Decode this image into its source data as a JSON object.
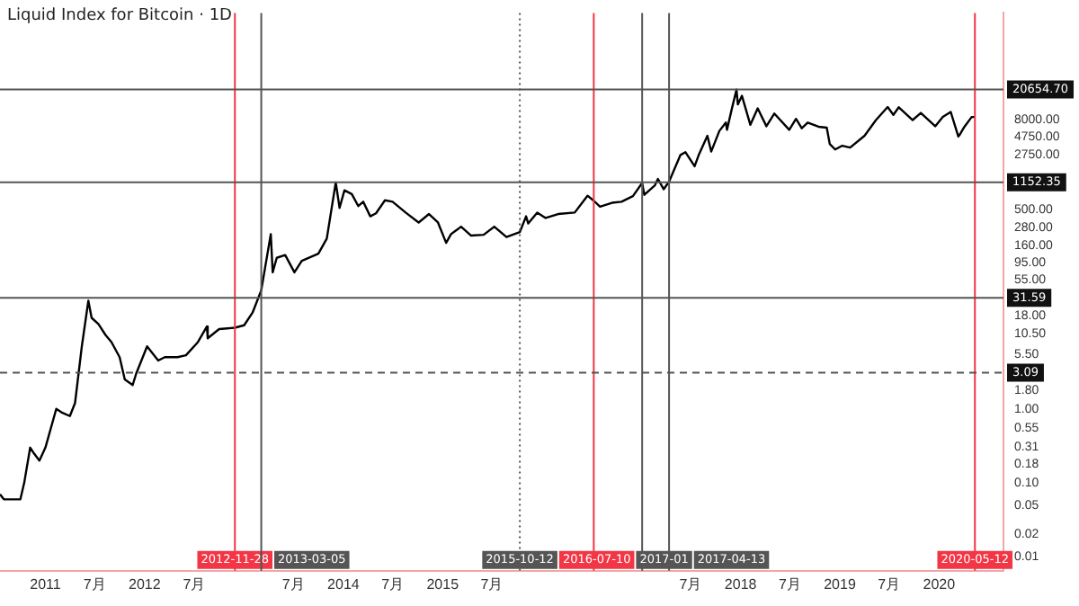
{
  "chart_data": {
    "type": "line",
    "title": "Liquid Index for Bitcoin · 1D",
    "log": "y",
    "legend": false,
    "grid": false,
    "marker": "none",
    "line_style": "solid",
    "xlim": [
      "2010-07-18",
      "2020-08-25"
    ],
    "xticks": [
      {
        "value": "2011-01-01",
        "label": "2011"
      },
      {
        "value": "2011-07-01",
        "label": "7月"
      },
      {
        "value": "2012-01-01",
        "label": "2012"
      },
      {
        "value": "2012-07-01",
        "label": "7月"
      },
      {
        "value": "2013-07-01",
        "label": "7月"
      },
      {
        "value": "2014-01-01",
        "label": "2014"
      },
      {
        "value": "2014-07-01",
        "label": "7月"
      },
      {
        "value": "2015-01-01",
        "label": "2015"
      },
      {
        "value": "2015-07-01",
        "label": "7月"
      },
      {
        "value": "2017-07-01",
        "label": "7月"
      },
      {
        "value": "2018-01-01",
        "label": "2018"
      },
      {
        "value": "2018-07-01",
        "label": "7月"
      },
      {
        "value": "2019-01-01",
        "label": "2019"
      },
      {
        "value": "2019-07-01",
        "label": "7月"
      },
      {
        "value": "2020-01-01",
        "label": "2020"
      }
    ],
    "ylim": [
      0.0065,
      224000
    ],
    "yticks": [
      {
        "value": 0.01,
        "label": "0.01"
      },
      {
        "value": 0.02,
        "label": "0.02"
      },
      {
        "value": 0.05,
        "label": "0.05"
      },
      {
        "value": 0.1,
        "label": "0.10"
      },
      {
        "value": 0.18,
        "label": "0.18"
      },
      {
        "value": 0.31,
        "label": "0.31"
      },
      {
        "value": 0.55,
        "label": "0.55"
      },
      {
        "value": 1,
        "label": "1.00"
      },
      {
        "value": 1.8,
        "label": "1.80"
      },
      {
        "value": 5.5,
        "label": "5.50"
      },
      {
        "value": 10.5,
        "label": "10.50"
      },
      {
        "value": 18,
        "label": "18.00"
      },
      {
        "value": 55,
        "label": "55.00"
      },
      {
        "value": 95,
        "label": "95.00"
      },
      {
        "value": 160,
        "label": "160.00"
      },
      {
        "value": 280,
        "label": "280.00"
      },
      {
        "value": 500,
        "label": "500.00"
      },
      {
        "value": 2750,
        "label": "2750.00"
      },
      {
        "value": 4750,
        "label": "4750.00"
      },
      {
        "value": 8000,
        "label": "8000.00"
      }
    ],
    "ref_lines": [
      {
        "axis": "x",
        "value": "2012-11-28",
        "label": "2012-11-28",
        "color": "#f23645",
        "line_style": "solid"
      },
      {
        "axis": "x",
        "value": "2013-03-05",
        "label": "2013-03-05",
        "color": "#555555",
        "line_style": "solid"
      },
      {
        "axis": "x",
        "value": "2015-10-12",
        "label": "2015-10-12",
        "color": "#555555",
        "line_style": "dotted"
      },
      {
        "axis": "x",
        "value": "2016-07-10",
        "label": "2016-07-10",
        "color": "#f23645",
        "line_style": "solid"
      },
      {
        "axis": "x",
        "value": "2017-01-04",
        "label": "2017-01",
        "color": "#555555",
        "line_style": "solid"
      },
      {
        "axis": "x",
        "value": "2017-04-13",
        "label": "2017-04-13",
        "color": "#555555",
        "line_style": "solid"
      },
      {
        "axis": "x",
        "value": "2020-05-12",
        "label": "2020-05-12",
        "color": "#f23645",
        "line_style": "solid"
      },
      {
        "axis": "y",
        "value": 20654.7,
        "label": "20654.70",
        "color": "#555555",
        "line_style": "solid"
      },
      {
        "axis": "y",
        "value": 1152.35,
        "label": "1152.35",
        "color": "#555555",
        "line_style": "solid"
      },
      {
        "axis": "y",
        "value": 31.59,
        "label": "31.59",
        "color": "#555555",
        "line_style": "solid"
      },
      {
        "axis": "y",
        "value": 3.09,
        "label": "3.09",
        "color": "#555555",
        "line_style": "dashed"
      }
    ],
    "series": [
      {
        "color": "#000000",
        "x": [
          "2010-07-18",
          "2010-08-01",
          "2010-09-01",
          "2010-10-01",
          "2010-10-15",
          "2010-11-06",
          "2010-11-20",
          "2010-12-10",
          "2011-01-01",
          "2011-02-10",
          "2011-03-01",
          "2011-04-01",
          "2011-04-20",
          "2011-05-15",
          "2011-06-08",
          "2011-06-20",
          "2011-07-15",
          "2011-08-10",
          "2011-09-01",
          "2011-10-01",
          "2011-10-20",
          "2011-11-18",
          "2011-12-01",
          "2012-01-10",
          "2012-02-20",
          "2012-03-15",
          "2012-05-01",
          "2012-06-01",
          "2012-07-15",
          "2012-08-17",
          "2012-08-20",
          "2012-10-01",
          "2012-11-28",
          "2013-01-01",
          "2013-02-01",
          "2013-03-05",
          "2013-04-09",
          "2013-04-16",
          "2013-05-01",
          "2013-06-01",
          "2013-07-05",
          "2013-08-01",
          "2013-10-01",
          "2013-11-01",
          "2013-12-04",
          "2013-12-18",
          "2014-01-05",
          "2014-02-01",
          "2014-02-25",
          "2014-03-15",
          "2014-04-10",
          "2014-05-01",
          "2014-06-03",
          "2014-07-01",
          "2014-08-18",
          "2014-10-05",
          "2014-11-12",
          "2014-12-15",
          "2015-01-14",
          "2015-02-01",
          "2015-03-10",
          "2015-04-15",
          "2015-06-01",
          "2015-07-10",
          "2015-08-24",
          "2015-10-12",
          "2015-11-04",
          "2015-11-12",
          "2015-12-15",
          "2016-01-15",
          "2016-03-01",
          "2016-05-01",
          "2016-06-17",
          "2016-07-10",
          "2016-08-02",
          "2016-09-15",
          "2016-10-20",
          "2016-12-01",
          "2017-01-04",
          "2017-01-12",
          "2017-02-20",
          "2017-03-03",
          "2017-03-24",
          "2017-04-13",
          "2017-05-25",
          "2017-06-12",
          "2017-07-16",
          "2017-08-01",
          "2017-09-01",
          "2017-09-15",
          "2017-10-15",
          "2017-11-08",
          "2017-11-12",
          "2017-11-29",
          "2017-12-17",
          "2017-12-22",
          "2018-01-06",
          "2018-02-06",
          "2018-03-05",
          "2018-04-06",
          "2018-05-05",
          "2018-06-29",
          "2018-07-24",
          "2018-08-14",
          "2018-09-05",
          "2018-10-15",
          "2018-11-14",
          "2018-11-25",
          "2018-12-15",
          "2019-01-10",
          "2019-02-08",
          "2019-04-02",
          "2019-05-14",
          "2019-06-26",
          "2019-07-17",
          "2019-08-06",
          "2019-09-26",
          "2019-10-26",
          "2019-12-18",
          "2020-01-15",
          "2020-02-13",
          "2020-03-12",
          "2020-03-16",
          "2020-04-01",
          "2020-04-30",
          "2020-05-12"
        ],
        "values": [
          0.07,
          0.06,
          0.06,
          0.06,
          0.1,
          0.3,
          0.25,
          0.2,
          0.3,
          1.0,
          0.9,
          0.8,
          1.2,
          7,
          29,
          17,
          14,
          10,
          8,
          5,
          2.5,
          2.1,
          3,
          7,
          4.5,
          5,
          5,
          5.3,
          8,
          13,
          9,
          12,
          12.5,
          13.5,
          20,
          40,
          230,
          70,
          110,
          120,
          70,
          100,
          125,
          200,
          1150,
          520,
          900,
          800,
          550,
          630,
          400,
          440,
          660,
          630,
          450,
          330,
          430,
          330,
          175,
          230,
          290,
          220,
          225,
          290,
          210,
          245,
          400,
          320,
          450,
          380,
          430,
          450,
          760,
          650,
          540,
          610,
          630,
          750,
          1130,
          780,
          1050,
          1280,
          930,
          1180,
          2700,
          2950,
          1900,
          2750,
          4900,
          3000,
          5700,
          7400,
          5900,
          11000,
          20600,
          13000,
          17000,
          6900,
          11500,
          6600,
          9800,
          5900,
          8300,
          6200,
          7400,
          6500,
          6300,
          3800,
          3200,
          3600,
          3400,
          4900,
          8000,
          12000,
          9400,
          11900,
          8000,
          10000,
          6600,
          8800,
          10300,
          4800,
          5000,
          6300,
          8800,
          8800
        ]
      }
    ]
  }
}
